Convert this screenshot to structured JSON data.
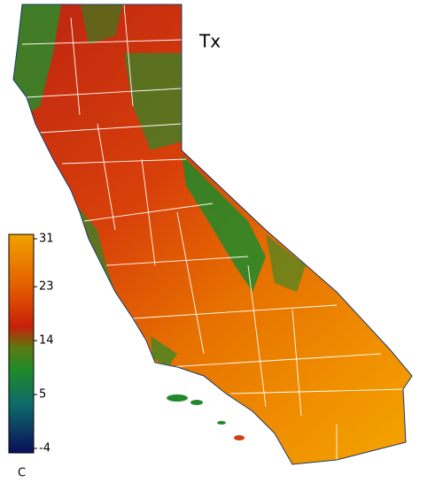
{
  "title": "Tx",
  "colorbar": {
    "ticks": [
      31,
      23,
      14,
      5,
      -4
    ],
    "unit": "C"
  }
}
